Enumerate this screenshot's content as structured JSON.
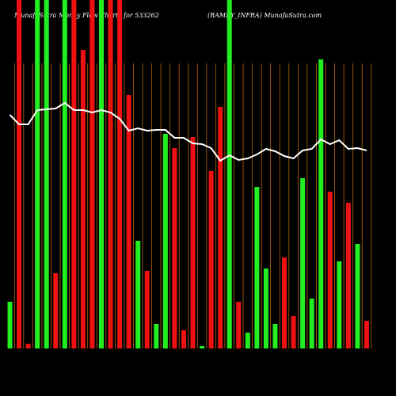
{
  "chart_data": {
    "type": "bar",
    "title": "MunafaSutra Money Flow Charts for 533262",
    "subtitle": "(RAMKY_INFRA) MunafaSutra.com",
    "categories": [
      null,
      null,
      null,
      null,
      null,
      null,
      null,
      null,
      null,
      null,
      null,
      null,
      null,
      null,
      null,
      null,
      null,
      null,
      null,
      null,
      null,
      null,
      null,
      null,
      null,
      null,
      null,
      null,
      null,
      null,
      null,
      null,
      null,
      null,
      null,
      null,
      null,
      null,
      null,
      null
    ],
    "values": [
      59,
      440,
      6,
      440,
      440,
      95,
      440,
      440,
      377,
      440,
      440,
      440,
      440,
      320,
      136,
      98,
      31,
      271,
      253,
      23,
      267,
      3,
      224,
      305,
      440,
      59,
      20,
      204,
      101,
      31,
      115,
      41,
      215,
      63,
      365,
      198,
      110,
      184,
      132,
      35
    ],
    "colors": [
      "#22ee22",
      "#ee1111",
      "#ee1111",
      "#22ee22",
      "#22ee22",
      "#ee1111",
      "#22ee22",
      "#ee1111",
      "#ee1111",
      "#ee1111",
      "#22ee22",
      "#ee1111",
      "#ee1111",
      "#ee1111",
      "#22ee22",
      "#ee1111",
      "#22ee22",
      "#22ee22",
      "#ee1111",
      "#ee1111",
      "#ee1111",
      "#22ee22",
      "#ee1111",
      "#ee1111",
      "#22ee22",
      "#ee1111",
      "#22ee22",
      "#22ee22",
      "#22ee22",
      "#22ee22",
      "#ee1111",
      "#ee1111",
      "#22ee22",
      "#22ee22",
      "#22ee22",
      "#ee1111",
      "#22ee22",
      "#ee1111",
      "#22ee22",
      "#ee1111"
    ],
    "line": {
      "color": "#ffffff",
      "values": [
        295,
        283,
        283,
        301,
        302,
        303,
        310,
        301,
        301,
        298,
        301,
        298,
        290,
        275,
        278,
        275,
        276,
        276,
        266,
        266,
        259,
        258,
        253,
        237,
        244,
        238,
        240,
        245,
        252,
        249,
        243,
        240,
        250,
        252,
        264,
        258,
        263,
        252,
        253,
        250
      ]
    },
    "ylim": [
      0,
      440
    ],
    "grid_color": "#b8660b"
  }
}
